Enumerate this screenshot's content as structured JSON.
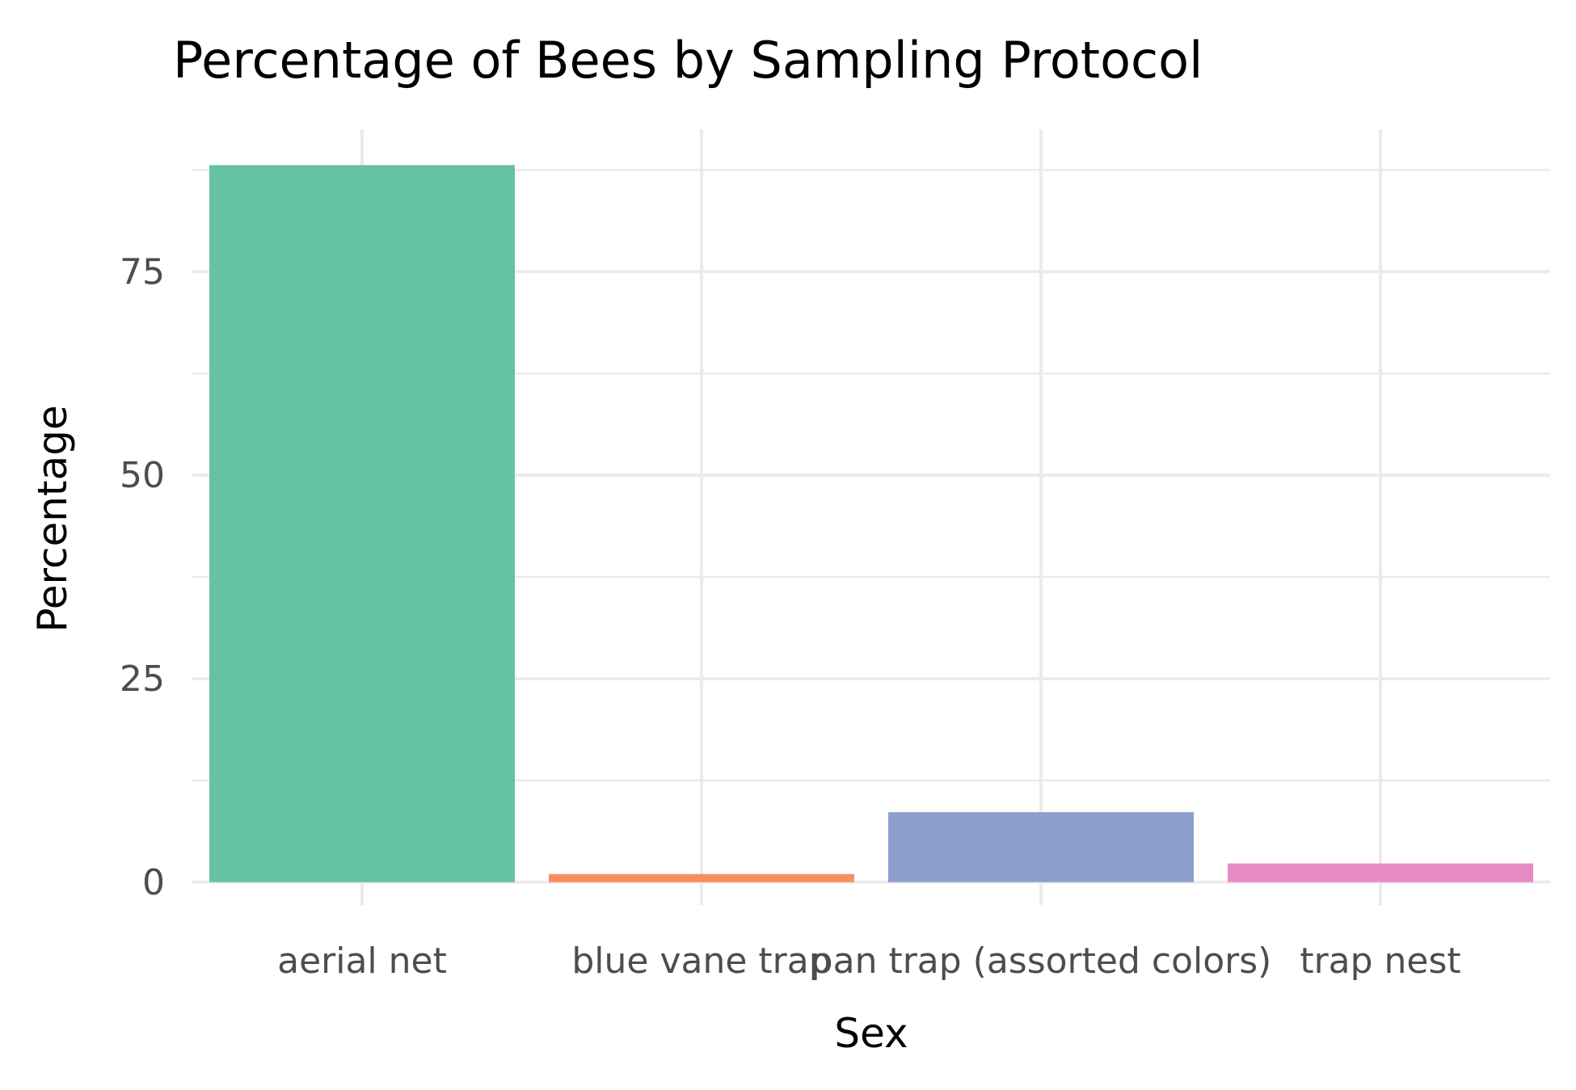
{
  "chart_data": {
    "type": "bar",
    "title": "Percentage of Bees by Sampling Protocol",
    "xlabel": "Sex",
    "ylabel": "Percentage",
    "categories": [
      "aerial net",
      "blue vane trap",
      "pan trap (assorted colors)",
      "trap nest"
    ],
    "values": [
      88.1,
      1.0,
      8.6,
      2.3
    ],
    "colors": [
      "#66c2a5",
      "#fc8d62",
      "#8da0cb",
      "#e78ac3"
    ],
    "yticks": [
      0,
      25,
      50,
      75
    ],
    "ylim": [
      -2.8,
      92.5
    ],
    "grid": true,
    "legend": "none"
  }
}
